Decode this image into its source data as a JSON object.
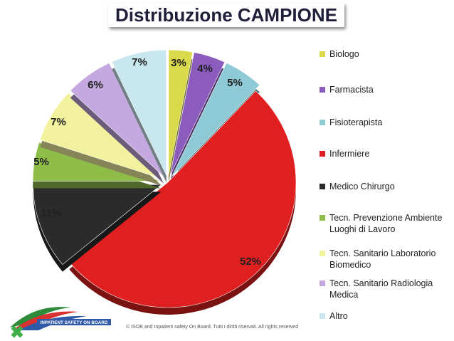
{
  "chart_data": {
    "type": "pie",
    "title": "Distribuzione CAMPIONE",
    "legend_position": "right",
    "slices": [
      {
        "name": "Biologo",
        "value": 3,
        "label": "3%",
        "color": "#d9d94a"
      },
      {
        "name": "Farmacista",
        "value": 4,
        "label": "4%",
        "color": "#8b5bbd"
      },
      {
        "name": "Fisioterapista",
        "value": 5,
        "label": "5%",
        "color": "#8ec9d6"
      },
      {
        "name": "Infermiere",
        "value": 52,
        "label": "52%",
        "color": "#e02020"
      },
      {
        "name": "Medico Chirurgo",
        "value": 11,
        "label": "11%",
        "color": "#2b2b2b"
      },
      {
        "name": "Tecn. Prevenzione Ambiente Luoghi di Lavoro",
        "value": 5,
        "label": "5%",
        "color": "#8fbd4a"
      },
      {
        "name": "Tecn. Sanitario Laboratorio Biomedico",
        "value": 7,
        "label": "7%",
        "color": "#f2f29e"
      },
      {
        "name": "Tecn. Sanitario Radiologia Medica",
        "value": 6,
        "label": "6%",
        "color": "#c4a8df"
      },
      {
        "name": "Altro",
        "value": 7,
        "label": "7%",
        "color": "#c9e7ee"
      }
    ]
  },
  "logo": {
    "text": "INPATIENT SAFETY ON BOARD"
  },
  "footer": {
    "copyright": "© ISOB and Inpatient safety On Board. Tutti i diritti riservati. All rights reserved"
  }
}
